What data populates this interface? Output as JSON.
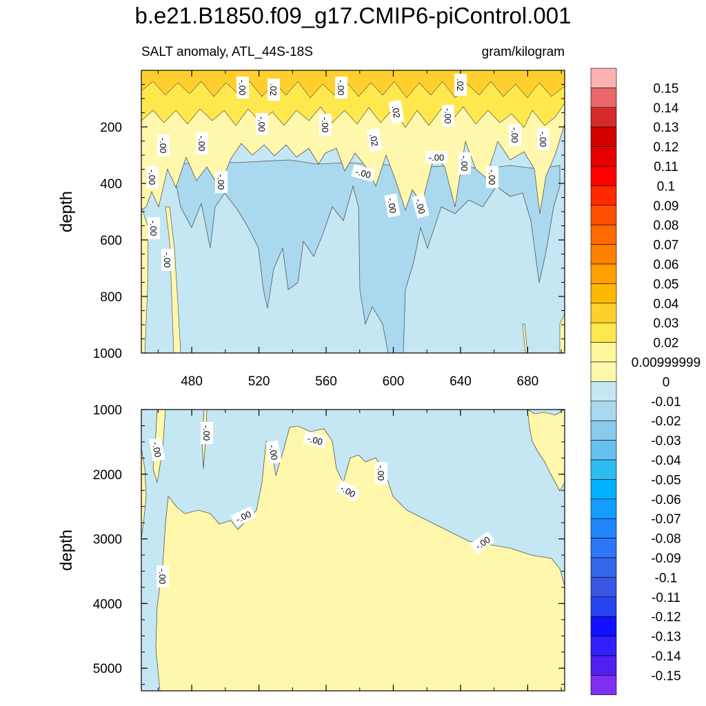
{
  "title": "b.e21.B1850.f09_g17.CMIP6-piControl.001",
  "left_label": "SALT anomaly, ATL_44S-18S",
  "right_label": "gram/kilogram",
  "chart_data": {
    "type": "heatmap",
    "title": "b.e21.B1850.f09_g17.CMIP6-piControl.001",
    "variable": "SALT anomaly",
    "region": "ATL_44S-18S",
    "units": "gram/kilogram",
    "xlabel": "",
    "ylabel": "depth",
    "xlim": [
      450,
      702
    ],
    "x_ticks": [
      "480",
      "520",
      "560",
      "600",
      "640",
      "680"
    ],
    "panels": [
      {
        "name": "upper",
        "ylim": [
          0,
          1000
        ],
        "y_ticks": [
          "200",
          "400",
          "600",
          "800",
          "1000"
        ],
        "contour_labels": [
          "-.00",
          ".02",
          "-.00",
          ".02",
          "-.00",
          ".02",
          "-.00",
          ".02",
          "-.00",
          "-.00",
          "-.00",
          "-.00",
          "-.00",
          "-.00",
          "-.00",
          "-.00",
          "-.00",
          "-.00",
          "-.00",
          "-.00",
          "-.00",
          "-.00",
          "-.00"
        ]
      },
      {
        "name": "lower",
        "ylim": [
          1000,
          5350
        ],
        "y_ticks": [
          "1000",
          "2000",
          "3000",
          "4000",
          "5000"
        ],
        "contour_labels": [
          "-.00",
          "-.00",
          "-.00",
          "-.00",
          "-.00",
          "-.00",
          "-.00",
          "-.00",
          "-.00"
        ]
      }
    ],
    "colorbar": {
      "labels": [
        "0.15",
        "0.14",
        "0.13",
        "0.12",
        "0.11",
        "0.1",
        "0.09",
        "0.08",
        "0.07",
        "0.06",
        "0.05",
        "0.04",
        "0.03",
        "0.02",
        "0.00999999",
        "0",
        "-0.01",
        "-0.02",
        "-0.03",
        "-0.04",
        "-0.05",
        "-0.06",
        "-0.07",
        "-0.08",
        "-0.09",
        "-0.1",
        "-0.11",
        "-0.12",
        "-0.13",
        "-0.14",
        "-0.15"
      ],
      "colors": [
        "#feb2b2",
        "#e9676a",
        "#d52a2a",
        "#d20000",
        "#e80000",
        "#ff0000",
        "#ff2a00",
        "#fe5000",
        "#ff6a00",
        "#fe8200",
        "#ffa000",
        "#ffb800",
        "#ffd02d",
        "#ffe84d",
        "#fff59b",
        "#fff8ac",
        "#c5e6f3",
        "#aad9ef",
        "#8ccaec",
        "#65c1f0",
        "#2cbcf1",
        "#00b2ff",
        "#159cff",
        "#2286ff",
        "#2c77f6",
        "#3366e8",
        "#3a56e2",
        "#2844ee",
        "#1111ff",
        "#3020ff",
        "#5020f0",
        "#8030f0"
      ]
    }
  }
}
